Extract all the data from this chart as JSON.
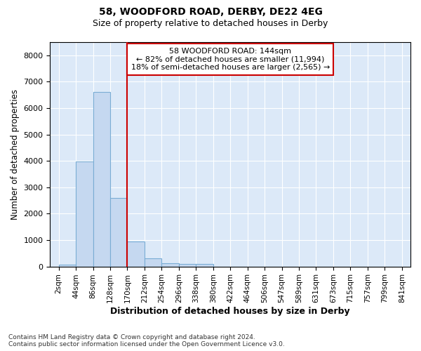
{
  "title1": "58, WOODFORD ROAD, DERBY, DE22 4EG",
  "title2": "Size of property relative to detached houses in Derby",
  "xlabel": "Distribution of detached houses by size in Derby",
  "ylabel": "Number of detached properties",
  "bin_labels": [
    "2sqm",
    "44sqm",
    "86sqm",
    "128sqm",
    "170sqm",
    "212sqm",
    "254sqm",
    "296sqm",
    "338sqm",
    "380sqm",
    "422sqm",
    "464sqm",
    "506sqm",
    "547sqm",
    "589sqm",
    "631sqm",
    "673sqm",
    "715sqm",
    "757sqm",
    "799sqm",
    "841sqm"
  ],
  "bar_heights": [
    80,
    3980,
    6600,
    2600,
    950,
    300,
    130,
    95,
    95,
    0,
    0,
    0,
    0,
    0,
    0,
    0,
    0,
    0,
    0,
    0
  ],
  "bar_color": "#c5d8f0",
  "bar_edge_color": "#7aadd4",
  "vline_position": 3,
  "vline_color": "#cc0000",
  "annotation_text": "58 WOODFORD ROAD: 144sqm\n← 82% of detached houses are smaller (11,994)\n18% of semi-detached houses are larger (2,565) →",
  "annotation_box_color": "#cc0000",
  "ylim": [
    0,
    8500
  ],
  "yticks": [
    0,
    1000,
    2000,
    3000,
    4000,
    5000,
    6000,
    7000,
    8000
  ],
  "plot_bg_color": "#dce9f8",
  "grid_color": "#ffffff",
  "fig_bg_color": "#ffffff",
  "footer_line1": "Contains HM Land Registry data © Crown copyright and database right 2024.",
  "footer_line2": "Contains public sector information licensed under the Open Government Licence v3.0."
}
